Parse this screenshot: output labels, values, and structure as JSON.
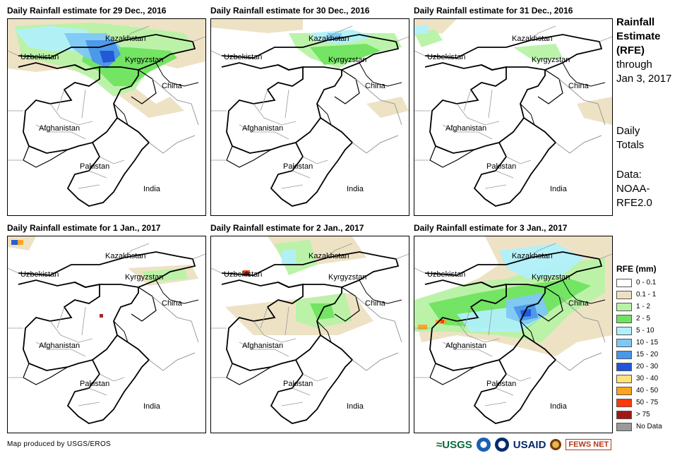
{
  "panels": [
    {
      "title": "Daily Rainfall estimate for 29 Dec., 2016",
      "variant": "dec29"
    },
    {
      "title": "Daily Rainfall estimate for 30 Dec., 2016",
      "variant": "dec30"
    },
    {
      "title": "Daily Rainfall estimate for 31 Dec., 2016",
      "variant": "dec31"
    },
    {
      "title": "Daily Rainfall estimate for 1 Jan., 2017",
      "variant": "jan1"
    },
    {
      "title": "Daily Rainfall estimate for 2 Jan., 2017",
      "variant": "jan2"
    },
    {
      "title": "Daily Rainfall estimate for 3 Jan., 2017",
      "variant": "jan3"
    }
  ],
  "map_labels": {
    "kazakhstan": "Kazakhstan",
    "uzbekistan": "Uzbekistan",
    "kyrgyzstan": "Kyrgyzstan",
    "china": "China",
    "afghanistan": "Afghanistan",
    "pakistan": "Pakistan",
    "india": "India"
  },
  "side": {
    "line1": "Rainfall",
    "line2": "Estimate",
    "line3": "(RFE)",
    "line4": "through",
    "line5": "Jan 3, 2017",
    "daily1": "Daily",
    "daily2": "Totals",
    "data1": "Data:",
    "data2": "NOAA-",
    "data3": "RFE2.0"
  },
  "legend": {
    "title": "RFE (mm)",
    "items": [
      {
        "label": "0 - 0.1",
        "color": "#ffffff"
      },
      {
        "label": "0.1 - 1",
        "color": "#ede0c2"
      },
      {
        "label": "1 - 2",
        "color": "#b7f2a7"
      },
      {
        "label": "2 - 5",
        "color": "#6fe35f"
      },
      {
        "label": "5 - 10",
        "color": "#b0f0fa"
      },
      {
        "label": "10 - 15",
        "color": "#7fc8f5"
      },
      {
        "label": "15 - 20",
        "color": "#4a96ea"
      },
      {
        "label": "20 - 30",
        "color": "#1f55d6"
      },
      {
        "label": "30 - 40",
        "color": "#ffe27a"
      },
      {
        "label": "40 - 50",
        "color": "#ffa41b"
      },
      {
        "label": "50 - 75",
        "color": "#ff3a0a"
      },
      {
        "label": "> 75",
        "color": "#a01818"
      },
      {
        "label": "No Data",
        "color": "#999999"
      }
    ]
  },
  "credit": "Map produced by USGS/EROS",
  "logos": {
    "usgs": "USGS",
    "usaid": "USAID",
    "fews": "FEWS NET"
  },
  "colors": {
    "beige": "#ede0c2",
    "lightgreen": "#b7f2a7",
    "green": "#6fe35f",
    "cyan": "#b0f0fa",
    "lightblue": "#7fc8f5",
    "blue": "#4a96ea",
    "darkblue": "#1f55d6",
    "orange": "#ffa41b",
    "red": "#ff3a0a",
    "darkred": "#a01818"
  }
}
